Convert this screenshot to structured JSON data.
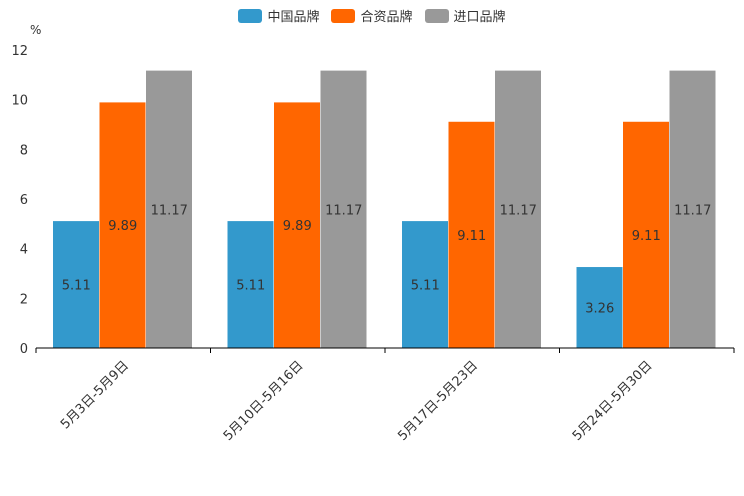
{
  "chart_data": {
    "type": "bar",
    "title": "",
    "ylabel": "%",
    "xlabel": "",
    "ylim": [
      0,
      12
    ],
    "yticks": [
      0,
      2,
      4,
      6,
      8,
      10,
      12
    ],
    "ytick_labels": [
      "0",
      "2",
      "4",
      "6",
      "8",
      "10",
      "12"
    ],
    "categories": [
      "5月3日-5月9日",
      "5月10日-5月16日",
      "5月17日-5月23日",
      "5月24日-5月30日"
    ],
    "series": [
      {
        "name": "中国品牌",
        "color": "#3399cc",
        "values": [
          5.11,
          5.11,
          5.11,
          3.26
        ],
        "labels": [
          "5.11",
          "5.11",
          "5.11",
          "3.26"
        ]
      },
      {
        "name": "合资品牌",
        "color": "#ff6600",
        "values": [
          9.89,
          9.89,
          9.11,
          9.11
        ],
        "labels": [
          "9.89",
          "9.89",
          "9.11",
          "9.11"
        ]
      },
      {
        "name": "进口品牌",
        "color": "#999999",
        "values": [
          11.17,
          11.17,
          11.17,
          11.17
        ],
        "labels": [
          "11.17",
          "11.17",
          "11.17",
          "11.17"
        ]
      }
    ],
    "legend_position": "top-center",
    "grid": false
  }
}
